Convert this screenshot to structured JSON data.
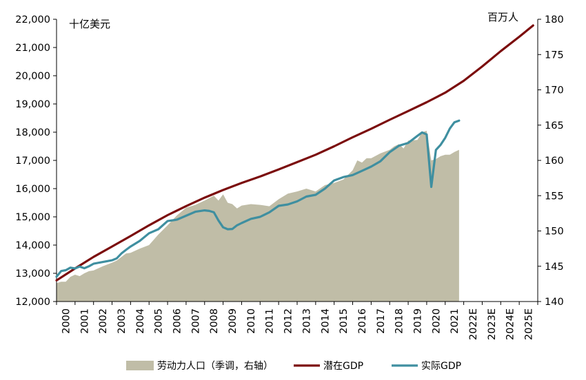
{
  "chart_data": {
    "type": "line",
    "left_unit": "十亿美元",
    "right_unit": "百万人",
    "left_axis": {
      "min": 12000,
      "max": 22000,
      "step": 1000,
      "tick_labels": [
        "12,000",
        "13,000",
        "14,000",
        "15,000",
        "16,000",
        "17,000",
        "18,000",
        "19,000",
        "20,000",
        "21,000",
        "22,000"
      ]
    },
    "right_axis": {
      "min": 140,
      "max": 180,
      "step": 5,
      "tick_labels": [
        "140",
        "145",
        "150",
        "155",
        "160",
        "165",
        "170",
        "175",
        "180"
      ]
    },
    "x_axis": {
      "start_year": 2000,
      "end_year": 2026,
      "tick_labels": [
        "2000",
        "2001",
        "2002",
        "2003",
        "2004",
        "2005",
        "2006",
        "2007",
        "2008",
        "2009",
        "2010",
        "2011",
        "2012",
        "2013",
        "2014",
        "2015",
        "2016",
        "2017",
        "2018",
        "2019",
        "2020",
        "2021",
        "2022E",
        "2023E",
        "2024E",
        "2025E"
      ]
    },
    "colors": {
      "labor": "#c0bda7",
      "potential": "#7b0c0c",
      "real": "#3f8fa0"
    },
    "series": [
      {
        "name": "劳动力人口（季调，右轴）",
        "axis": "right",
        "kind": "area",
        "x": [
          2000.0,
          2000.25,
          2000.5,
          2000.75,
          2001.0,
          2001.25,
          2001.5,
          2001.75,
          2002.0,
          2002.5,
          2003.0,
          2003.25,
          2003.5,
          2003.75,
          2004.0,
          2004.5,
          2005.0,
          2005.5,
          2006.0,
          2006.5,
          2007.0,
          2007.5,
          2008.0,
          2008.5,
          2008.75,
          2009.0,
          2009.25,
          2009.5,
          2009.75,
          2010.0,
          2010.5,
          2011.0,
          2011.5,
          2012.0,
          2012.5,
          2013.0,
          2013.5,
          2014.0,
          2014.5,
          2015.0,
          2015.5,
          2016.0,
          2016.25,
          2016.5,
          2016.75,
          2017.0,
          2017.5,
          2018.0,
          2018.25,
          2018.5,
          2018.75,
          2019.0,
          2019.5,
          2019.75,
          2020.0,
          2020.25,
          2020.5,
          2020.75,
          2021.0,
          2021.25,
          2021.5,
          2021.75
        ],
        "values": [
          142.6,
          142.8,
          142.8,
          143.5,
          143.8,
          143.6,
          144.0,
          144.3,
          144.4,
          145.0,
          145.5,
          145.8,
          146.3,
          146.8,
          146.9,
          147.5,
          148.0,
          149.5,
          150.8,
          152.2,
          153.3,
          153.7,
          154.3,
          155.0,
          154.3,
          155.2,
          154.0,
          153.8,
          153.2,
          153.6,
          153.8,
          153.7,
          153.5,
          154.5,
          155.3,
          155.6,
          156.0,
          155.6,
          156.5,
          156.8,
          157.3,
          158.6,
          160.0,
          159.7,
          160.3,
          160.3,
          161.0,
          161.5,
          162.0,
          162.3,
          161.7,
          162.8,
          162.9,
          164.0,
          164.2,
          160.0,
          160.2,
          160.6,
          160.8,
          160.8,
          161.2,
          161.5
        ]
      },
      {
        "name": "潜在GDP",
        "axis": "left",
        "kind": "line",
        "x": [
          2000.0,
          2001.0,
          2002.0,
          2003.0,
          2004.0,
          2005.0,
          2006.0,
          2007.0,
          2008.0,
          2009.0,
          2010.0,
          2011.0,
          2012.0,
          2013.0,
          2014.0,
          2015.0,
          2016.0,
          2017.0,
          2018.0,
          2019.0,
          2020.0,
          2021.0,
          2022.0,
          2023.0,
          2024.0,
          2025.0,
          2025.75
        ],
        "values": [
          12750,
          13170,
          13580,
          13950,
          14320,
          14700,
          15060,
          15380,
          15680,
          15950,
          16200,
          16430,
          16680,
          16940,
          17200,
          17500,
          17820,
          18120,
          18440,
          18750,
          19060,
          19400,
          19820,
          20330,
          20870,
          21380,
          21780
        ]
      },
      {
        "name": "实际GDP",
        "axis": "left",
        "kind": "line",
        "x": [
          2000.0,
          2000.25,
          2000.5,
          2000.75,
          2001.0,
          2001.25,
          2001.5,
          2001.75,
          2002.0,
          2002.5,
          2003.0,
          2003.25,
          2003.5,
          2003.75,
          2004.0,
          2004.5,
          2005.0,
          2005.5,
          2006.0,
          2006.5,
          2007.0,
          2007.5,
          2008.0,
          2008.25,
          2008.5,
          2008.75,
          2009.0,
          2009.25,
          2009.5,
          2009.75,
          2010.0,
          2010.5,
          2011.0,
          2011.5,
          2012.0,
          2012.5,
          2013.0,
          2013.5,
          2014.0,
          2014.5,
          2015.0,
          2015.5,
          2016.0,
          2016.5,
          2017.0,
          2017.5,
          2018.0,
          2018.5,
          2019.0,
          2019.5,
          2019.75,
          2020.0,
          2020.25,
          2020.5,
          2020.75,
          2021.0,
          2021.25,
          2021.5,
          2021.75
        ],
        "values": [
          12880,
          13080,
          13110,
          13200,
          13170,
          13240,
          13180,
          13250,
          13340,
          13400,
          13460,
          13530,
          13700,
          13830,
          13950,
          14150,
          14420,
          14560,
          14850,
          14900,
          15040,
          15180,
          15230,
          15210,
          15160,
          14870,
          14630,
          14560,
          14570,
          14700,
          14780,
          14930,
          15000,
          15160,
          15390,
          15440,
          15550,
          15720,
          15780,
          16000,
          16290,
          16410,
          16480,
          16630,
          16780,
          16970,
          17290,
          17520,
          17620,
          17870,
          17990,
          17920,
          16060,
          17370,
          17550,
          17800,
          18130,
          18350,
          18410
        ]
      }
    ],
    "legend": [
      {
        "label": "劳动力人口（季调，右轴）",
        "kind": "area"
      },
      {
        "label": "潜在GDP",
        "kind": "line"
      },
      {
        "label": "实际GDP",
        "kind": "line"
      }
    ]
  }
}
